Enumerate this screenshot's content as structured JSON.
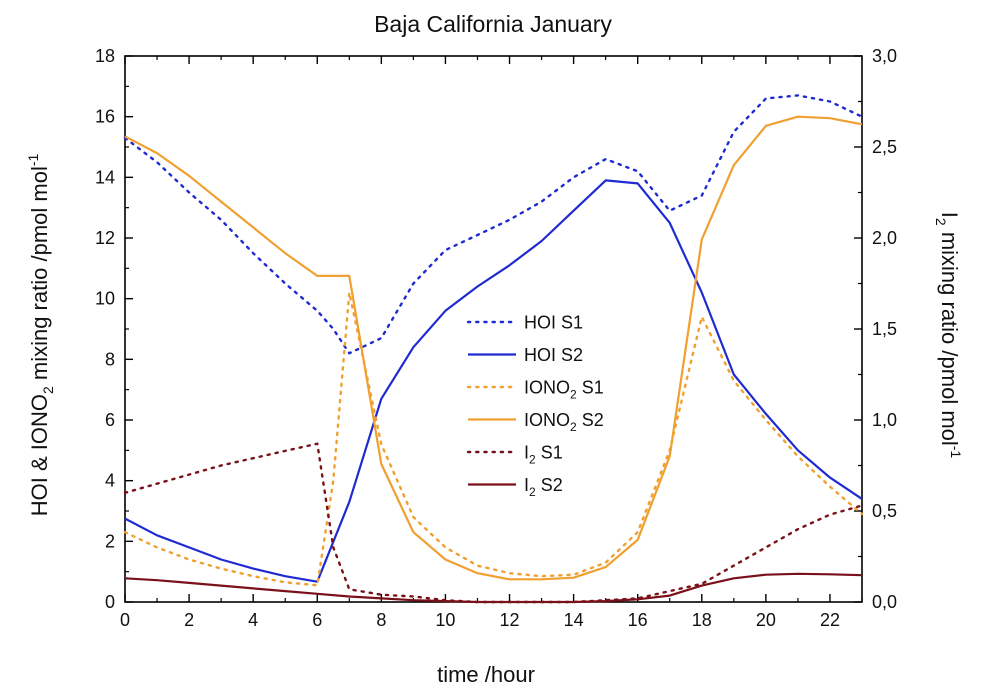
{
  "chart_data": {
    "type": "line",
    "title": "Baja California January",
    "xlabel": "time /hour",
    "ylabel_left": {
      "main": "HOI & IONO",
      "sub": "2",
      "rest": " mixing ratio /pmol mol",
      "sup": "-1"
    },
    "ylabel_right": {
      "main": "I",
      "sub": "2",
      "rest": " mixing ratio /pmol mol",
      "sup": "-1"
    },
    "xlim": [
      0,
      23
    ],
    "ylim_left": [
      0,
      18
    ],
    "ylim_right": [
      0,
      3.0
    ],
    "x_ticks": [
      "0",
      "2",
      "4",
      "6",
      "8",
      "10",
      "12",
      "14",
      "16",
      "18",
      "20",
      "22"
    ],
    "y_ticks_left": [
      "0",
      "2",
      "4",
      "6",
      "8",
      "10",
      "12",
      "14",
      "16",
      "18"
    ],
    "y_ticks_right": [
      "0,0",
      "0,5",
      "1,0",
      "1,5",
      "2,0",
      "2,5",
      "3,0"
    ],
    "legend_position": "center",
    "x": [
      0,
      1,
      2,
      3,
      4,
      5,
      6,
      7,
      8,
      9,
      10,
      11,
      12,
      13,
      14,
      15,
      16,
      17,
      18,
      19,
      20,
      21,
      22,
      23
    ],
    "series": [
      {
        "name": {
          "main": "HOI S1",
          "sub": ""
        },
        "axis": "left",
        "color": "#1f2bd1",
        "dash": "dotted",
        "x": [
          0,
          1,
          2,
          3,
          4,
          5,
          6,
          6.5,
          7,
          8,
          9,
          10,
          11,
          12,
          13,
          14,
          15,
          16,
          17,
          18,
          19,
          20,
          21,
          22,
          23
        ],
        "values": [
          15.3,
          14.5,
          13.5,
          12.6,
          11.5,
          10.5,
          9.6,
          9.0,
          8.2,
          8.7,
          10.5,
          11.6,
          12.1,
          12.6,
          13.2,
          14.0,
          14.6,
          14.2,
          12.9,
          13.4,
          15.5,
          16.6,
          16.7,
          16.5,
          16.0
        ]
      },
      {
        "name": {
          "main": "HOI S2",
          "sub": ""
        },
        "axis": "left",
        "color": "#1f2bd1",
        "dash": "solid",
        "x": [
          0,
          1,
          2,
          3,
          4,
          5,
          6,
          7,
          8,
          9,
          10,
          11,
          12,
          13,
          14,
          15,
          16,
          17,
          18,
          19,
          20,
          21,
          22,
          23
        ],
        "values": [
          2.75,
          2.2,
          1.8,
          1.4,
          1.1,
          0.85,
          0.67,
          3.3,
          6.7,
          8.4,
          9.6,
          10.4,
          11.1,
          11.9,
          12.9,
          13.9,
          13.8,
          12.5,
          10.2,
          7.5,
          6.2,
          5.0,
          4.1,
          3.4
        ]
      },
      {
        "name": {
          "main": "IONO",
          "sub": "2",
          "rest": " S1"
        },
        "axis": "left",
        "color": "#f0a030",
        "dash": "dotted",
        "x": [
          0,
          1,
          2,
          3,
          4,
          5,
          6,
          6.5,
          7,
          8,
          9,
          10,
          11,
          12,
          13,
          14,
          15,
          16,
          17,
          18,
          19,
          20,
          21,
          22,
          23
        ],
        "values": [
          2.3,
          1.8,
          1.4,
          1.1,
          0.85,
          0.65,
          0.55,
          4.0,
          10.2,
          5.2,
          2.8,
          1.8,
          1.2,
          0.95,
          0.85,
          0.9,
          1.3,
          2.3,
          5.0,
          9.4,
          7.3,
          6.0,
          4.8,
          3.8,
          2.9
        ]
      },
      {
        "name": {
          "main": "IONO",
          "sub": "2",
          "rest": " S2"
        },
        "axis": "left",
        "color": "#f0a030",
        "dash": "solid",
        "x": [
          0,
          1,
          2,
          3,
          4,
          5,
          6,
          7,
          8,
          9,
          10,
          11,
          12,
          13,
          14,
          15,
          16,
          17,
          18,
          19,
          20,
          21,
          22,
          23
        ],
        "values": [
          15.35,
          14.8,
          14.05,
          13.2,
          12.35,
          11.5,
          10.75,
          10.75,
          4.55,
          2.3,
          1.4,
          0.95,
          0.75,
          0.75,
          0.8,
          1.15,
          2.05,
          4.8,
          11.95,
          14.4,
          15.7,
          16.0,
          15.95,
          15.75
        ]
      },
      {
        "name": {
          "main": "I",
          "sub": "2",
          "rest": " S1"
        },
        "axis": "right",
        "color": "#7a1019",
        "dash": "dotted",
        "x": [
          0,
          1,
          2,
          3,
          4,
          5,
          6,
          6.5,
          7,
          8,
          9,
          10,
          11,
          12,
          13,
          14,
          15,
          16,
          17,
          18,
          19,
          20,
          21,
          22,
          23
        ],
        "values": [
          0.6,
          0.65,
          0.7,
          0.75,
          0.79,
          0.83,
          0.87,
          0.3,
          0.07,
          0.04,
          0.03,
          0.01,
          0.0,
          0.0,
          0.0,
          0.0,
          0.01,
          0.02,
          0.06,
          0.1,
          0.2,
          0.3,
          0.4,
          0.48,
          0.53
        ]
      },
      {
        "name": {
          "main": "I",
          "sub": "2",
          "rest": " S2"
        },
        "axis": "right",
        "color": "#7a1019",
        "dash": "solid",
        "x": [
          0,
          1,
          2,
          3,
          4,
          5,
          6,
          7,
          8,
          9,
          10,
          11,
          12,
          13,
          14,
          15,
          16,
          17,
          18,
          19,
          20,
          21,
          22,
          23
        ],
        "values": [
          0.13,
          0.12,
          0.105,
          0.09,
          0.075,
          0.06,
          0.045,
          0.03,
          0.02,
          0.01,
          0.005,
          0.0,
          0.0,
          0.0,
          0.0,
          0.005,
          0.015,
          0.035,
          0.09,
          0.13,
          0.15,
          0.155,
          0.152,
          0.147
        ]
      }
    ]
  }
}
